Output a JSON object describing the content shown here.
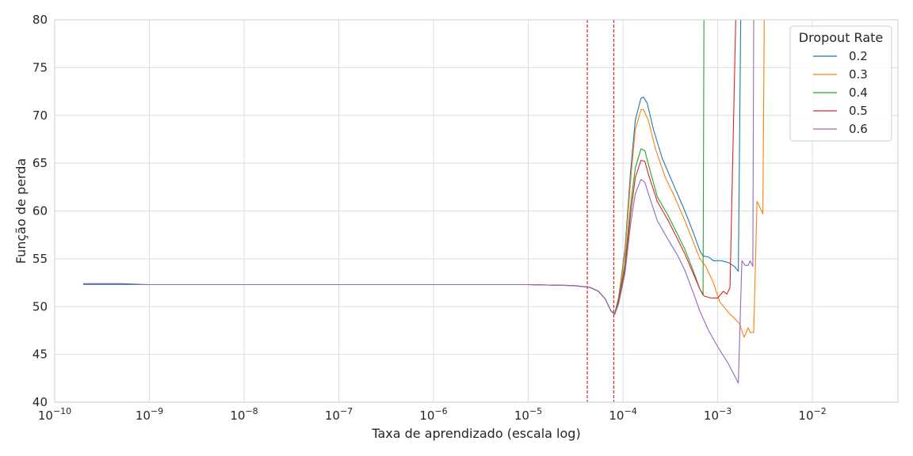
{
  "chart_data": {
    "type": "line",
    "xlabel": "Taxa de aprendizado (escala log)",
    "ylabel": "Função de perda",
    "xscale": "log",
    "xlim": [
      1e-10,
      0.08
    ],
    "ylim": [
      40,
      80
    ],
    "grid": true,
    "x_ticks": [
      {
        "value": 1e-10,
        "base": "10",
        "exp": "−10"
      },
      {
        "value": 1e-09,
        "base": "10",
        "exp": "−9"
      },
      {
        "value": 1e-08,
        "base": "10",
        "exp": "−8"
      },
      {
        "value": 1e-07,
        "base": "10",
        "exp": "−7"
      },
      {
        "value": 1e-06,
        "base": "10",
        "exp": "−6"
      },
      {
        "value": 1e-05,
        "base": "10",
        "exp": "−5"
      },
      {
        "value": 0.0001,
        "base": "10",
        "exp": "−4"
      },
      {
        "value": 0.001,
        "base": "10",
        "exp": "−3"
      },
      {
        "value": 0.01,
        "base": "10",
        "exp": "−2"
      }
    ],
    "y_ticks": [
      "40",
      "45",
      "50",
      "55",
      "60",
      "65",
      "70",
      "75",
      "80"
    ],
    "vlines": [
      {
        "x": 4.2e-05,
        "color": "#d62728",
        "style": "dashed"
      },
      {
        "x": 8e-05,
        "color": "#d62728",
        "style": "dashed"
      }
    ],
    "legend": {
      "title": "Dropout Rate",
      "position": "top-right"
    },
    "series": [
      {
        "name": "0.2",
        "color": "#1f77b4",
        "points": [
          [
            2e-10,
            52.4
          ],
          [
            5e-10,
            52.4
          ],
          [
            1e-09,
            52.3
          ],
          [
            1e-08,
            52.3
          ],
          [
            1e-07,
            52.3
          ],
          [
            1e-06,
            52.3
          ],
          [
            1e-05,
            52.3
          ],
          [
            3e-05,
            52.2
          ],
          [
            4.5e-05,
            52.0
          ],
          [
            5.5e-05,
            51.6
          ],
          [
            6.5e-05,
            50.8
          ],
          [
            7.5e-05,
            49.5
          ],
          [
            8.2e-05,
            49.3
          ],
          [
            9e-05,
            51
          ],
          [
            0.000105,
            56
          ],
          [
            0.00012,
            64
          ],
          [
            0.000135,
            69.5
          ],
          [
            0.000155,
            71.8
          ],
          [
            0.000165,
            71.9
          ],
          [
            0.00018,
            71.3
          ],
          [
            0.00021,
            68.5
          ],
          [
            0.00026,
            65.5
          ],
          [
            0.00035,
            62.5
          ],
          [
            0.00045,
            60
          ],
          [
            0.00055,
            57.8
          ],
          [
            0.00065,
            55.8
          ],
          [
            0.0007,
            55.3
          ],
          [
            0.0008,
            55.2
          ],
          [
            0.0009,
            54.8
          ],
          [
            0.0011,
            54.8
          ],
          [
            0.0013,
            54.6
          ],
          [
            0.0015,
            54.2
          ],
          [
            0.00165,
            53.7
          ],
          [
            0.00175,
            80
          ]
        ]
      },
      {
        "name": "0.3",
        "color": "#ff7f0e",
        "points": [
          [
            2e-10,
            52.3
          ],
          [
            5e-10,
            52.3
          ],
          [
            1e-09,
            52.3
          ],
          [
            1e-08,
            52.3
          ],
          [
            1e-07,
            52.3
          ],
          [
            1e-06,
            52.3
          ],
          [
            1e-05,
            52.3
          ],
          [
            3e-05,
            52.2
          ],
          [
            4.5e-05,
            52.0
          ],
          [
            5.5e-05,
            51.6
          ],
          [
            6.5e-05,
            50.8
          ],
          [
            7.5e-05,
            49.5
          ],
          [
            8.2e-05,
            49.3
          ],
          [
            9e-05,
            51
          ],
          [
            0.000105,
            55.5
          ],
          [
            0.00012,
            63
          ],
          [
            0.000135,
            68.5
          ],
          [
            0.000155,
            70.6
          ],
          [
            0.000165,
            70.6
          ],
          [
            0.000185,
            69.5
          ],
          [
            0.00022,
            66.5
          ],
          [
            0.00028,
            63.5
          ],
          [
            0.00035,
            61.5
          ],
          [
            0.00045,
            59
          ],
          [
            0.00055,
            56.8
          ],
          [
            0.00065,
            55
          ],
          [
            0.00075,
            54.2
          ],
          [
            0.0009,
            52.5
          ],
          [
            0.00105,
            50.5
          ],
          [
            0.0012,
            49.8
          ],
          [
            0.00135,
            49.2
          ],
          [
            0.0015,
            48.8
          ],
          [
            0.0017,
            48.2
          ],
          [
            0.0019,
            46.8
          ],
          [
            0.0021,
            47.8
          ],
          [
            0.0022,
            47.3
          ],
          [
            0.0024,
            47.3
          ],
          [
            0.0026,
            61
          ],
          [
            0.003,
            59.7
          ],
          [
            0.0031,
            80
          ]
        ]
      },
      {
        "name": "0.4",
        "color": "#2ca02c",
        "points": [
          [
            2e-10,
            52.3
          ],
          [
            5e-10,
            52.3
          ],
          [
            1e-09,
            52.3
          ],
          [
            1e-08,
            52.3
          ],
          [
            1e-07,
            52.3
          ],
          [
            1e-06,
            52.3
          ],
          [
            1e-05,
            52.3
          ],
          [
            3e-05,
            52.2
          ],
          [
            4.5e-05,
            52.0
          ],
          [
            5.5e-05,
            51.6
          ],
          [
            6.5e-05,
            50.8
          ],
          [
            7.5e-05,
            49.5
          ],
          [
            8.2e-05,
            49.3
          ],
          [
            9e-05,
            50.8
          ],
          [
            0.000105,
            54.5
          ],
          [
            0.00012,
            60.5
          ],
          [
            0.000135,
            64.5
          ],
          [
            0.000155,
            66.5
          ],
          [
            0.00017,
            66.3
          ],
          [
            0.00019,
            64.5
          ],
          [
            0.00023,
            61.5
          ],
          [
            0.0003,
            59.5
          ],
          [
            0.00038,
            57.5
          ],
          [
            0.00045,
            56
          ],
          [
            0.00055,
            53.8
          ],
          [
            0.00065,
            51.8
          ],
          [
            0.0007,
            51.2
          ],
          [
            0.000715,
            80
          ]
        ]
      },
      {
        "name": "0.5",
        "color": "#d62728",
        "points": [
          [
            2e-10,
            52.3
          ],
          [
            5e-10,
            52.3
          ],
          [
            1e-09,
            52.3
          ],
          [
            1e-08,
            52.3
          ],
          [
            1e-07,
            52.3
          ],
          [
            1e-06,
            52.3
          ],
          [
            1e-05,
            52.3
          ],
          [
            3e-05,
            52.2
          ],
          [
            4.5e-05,
            52.0
          ],
          [
            5.5e-05,
            51.6
          ],
          [
            6.5e-05,
            50.8
          ],
          [
            7.5e-05,
            49.5
          ],
          [
            8.2e-05,
            49.2
          ],
          [
            9e-05,
            50.5
          ],
          [
            0.000105,
            54
          ],
          [
            0.00012,
            59.5
          ],
          [
            0.000135,
            63.5
          ],
          [
            0.000155,
            65.3
          ],
          [
            0.00017,
            65.2
          ],
          [
            0.00019,
            63.5
          ],
          [
            0.00023,
            61
          ],
          [
            0.0003,
            59
          ],
          [
            0.00038,
            57
          ],
          [
            0.00045,
            55.5
          ],
          [
            0.00055,
            53.5
          ],
          [
            0.00065,
            51.8
          ],
          [
            0.00072,
            51.1
          ],
          [
            0.00085,
            50.9
          ],
          [
            0.001,
            50.9
          ],
          [
            0.00115,
            51.6
          ],
          [
            0.00125,
            51.3
          ],
          [
            0.00135,
            52
          ],
          [
            0.00155,
            80
          ]
        ]
      },
      {
        "name": "0.6",
        "color": "#9467bd",
        "points": [
          [
            2e-10,
            52.3
          ],
          [
            5e-10,
            52.3
          ],
          [
            1e-09,
            52.3
          ],
          [
            1e-08,
            52.3
          ],
          [
            1e-07,
            52.3
          ],
          [
            1e-06,
            52.3
          ],
          [
            1e-05,
            52.3
          ],
          [
            3e-05,
            52.2
          ],
          [
            4.5e-05,
            52.0
          ],
          [
            5.5e-05,
            51.6
          ],
          [
            6.5e-05,
            50.8
          ],
          [
            7.5e-05,
            49.5
          ],
          [
            8.2e-05,
            49.2
          ],
          [
            9e-05,
            50.3
          ],
          [
            0.000105,
            53.5
          ],
          [
            0.00012,
            58.5
          ],
          [
            0.000135,
            61.8
          ],
          [
            0.000155,
            63.3
          ],
          [
            0.00017,
            63
          ],
          [
            0.00019,
            61.5
          ],
          [
            0.00023,
            59
          ],
          [
            0.0003,
            57
          ],
          [
            0.00038,
            55.3
          ],
          [
            0.00045,
            53.8
          ],
          [
            0.00055,
            51.5
          ],
          [
            0.00065,
            49.5
          ],
          [
            0.0008,
            47.5
          ],
          [
            0.001,
            45.8
          ],
          [
            0.0013,
            44
          ],
          [
            0.00165,
            42
          ],
          [
            0.0018,
            54.8
          ],
          [
            0.00195,
            54.3
          ],
          [
            0.0021,
            54.3
          ],
          [
            0.0022,
            54.8
          ],
          [
            0.00235,
            54.2
          ],
          [
            0.0024,
            80
          ]
        ]
      }
    ]
  }
}
